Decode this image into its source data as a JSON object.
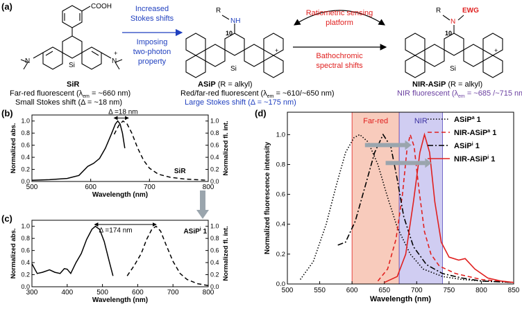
{
  "panels": {
    "a": "(a)",
    "b": "(b)",
    "c": "(c)",
    "d": "(d)"
  },
  "colors": {
    "blue": "#1f3fbf",
    "red": "#e0201f",
    "purple": "#6a3fa0",
    "farred_band": "#f5b9a6",
    "nir_band": "#c8c4f0",
    "arrow_gray": "#9aa5ad"
  },
  "scheme": {
    "sir": {
      "name": "SiR",
      "line1_pre": "Far-red fluorescent (λ",
      "line1_sub": "em",
      "line1_post": " = ~660 nm)",
      "line2": "Small Stokes shift (Δ = ~18 nm)",
      "cooh": "COOH",
      "nme2_left": "N",
      "nme2_right": "N",
      "si": "Si",
      "plus": "+"
    },
    "asip": {
      "name": "ASiP",
      "name_suffix": " (R = alkyl)",
      "line1_pre": "Red/far-red fluorescent (λ",
      "line1_sub": "em",
      "line1_post": " = ~610/~650 nm)",
      "line2": "Large Stokes shift (Δ = ~175 nm)",
      "r_nh": "R",
      "nh": "NH",
      "pos10": "10",
      "si": "Si",
      "plus": "+"
    },
    "nir_asip": {
      "name": "NIR-ASiP",
      "name_suffix": " (R = alkyl)",
      "line1_pre": "NIR fluorescent (λ",
      "line1_sub": "em",
      "line1_post": " = ~685 /~715 nm)",
      "r": "R",
      "n": "N",
      "ewg": "EWG",
      "pos10": "10",
      "si": "Si",
      "plus": "+"
    },
    "arrow1": {
      "top1": "Increased",
      "top2": "Stokes shifts",
      "bot1": "Imposing",
      "bot2": "two-photon",
      "bot3": "property"
    },
    "arrow2": {
      "top1": "Ratiometric sensing",
      "top2": "platform",
      "bot1": "Bathochromic",
      "bot2": "spectral shifts"
    }
  },
  "panel_b": {
    "delta": "Δ =18 nm",
    "xlabel": "Wavelength (nm)",
    "ylabel_left": "Normalized abs.",
    "ylabel_right": "Normalized fl. int.",
    "xticks": [
      "500",
      "600",
      "700",
      "800"
    ],
    "yticks": [
      "0.0",
      "0.2",
      "0.4",
      "0.6",
      "0.8",
      "1.0"
    ],
    "tag": "SiR",
    "xlim": [
      500,
      800
    ],
    "absorption": [
      [
        500,
        0.02
      ],
      [
        530,
        0.03
      ],
      [
        560,
        0.05
      ],
      [
        580,
        0.1
      ],
      [
        595,
        0.25
      ],
      [
        605,
        0.3
      ],
      [
        615,
        0.38
      ],
      [
        625,
        0.55
      ],
      [
        635,
        0.78
      ],
      [
        642,
        0.95
      ],
      [
        646,
        1.0
      ],
      [
        650,
        0.95
      ],
      [
        654,
        0.8
      ],
      [
        658,
        0.55
      ]
    ],
    "fluorescence": [
      [
        640,
        0.78
      ],
      [
        648,
        0.93
      ],
      [
        655,
        1.0
      ],
      [
        662,
        0.95
      ],
      [
        670,
        0.8
      ],
      [
        680,
        0.55
      ],
      [
        690,
        0.35
      ],
      [
        700,
        0.22
      ],
      [
        715,
        0.12
      ],
      [
        735,
        0.07
      ],
      [
        760,
        0.04
      ],
      [
        800,
        0.02
      ]
    ]
  },
  "panel_c": {
    "delta": "Δ =174 nm",
    "xlabel": "Wavelength (nm)",
    "ylabel_left": "Normalized abs.",
    "ylabel_right": "Normalized fl. int.",
    "xticks": [
      "300",
      "400",
      "500",
      "600",
      "700",
      "800"
    ],
    "yticks": [
      "0.0",
      "0.2",
      "0.4",
      "0.6",
      "0.8",
      "1.0"
    ],
    "tag": "ASiP",
    "tag_sup": "i",
    "tag_suffix": " 1",
    "xlim": [
      300,
      800
    ],
    "absorption": [
      [
        300,
        0.38
      ],
      [
        315,
        0.22
      ],
      [
        330,
        0.24
      ],
      [
        350,
        0.28
      ],
      [
        365,
        0.24
      ],
      [
        380,
        0.22
      ],
      [
        392,
        0.3
      ],
      [
        400,
        0.29
      ],
      [
        410,
        0.22
      ],
      [
        425,
        0.4
      ],
      [
        440,
        0.55
      ],
      [
        455,
        0.78
      ],
      [
        470,
        0.95
      ],
      [
        480,
        1.0
      ],
      [
        492,
        0.95
      ],
      [
        505,
        0.75
      ],
      [
        520,
        0.4
      ],
      [
        530,
        0.18
      ]
    ],
    "fluorescence": [
      [
        570,
        0.18
      ],
      [
        590,
        0.35
      ],
      [
        610,
        0.55
      ],
      [
        625,
        0.78
      ],
      [
        640,
        0.95
      ],
      [
        652,
        1.0
      ],
      [
        665,
        0.92
      ],
      [
        680,
        0.7
      ],
      [
        700,
        0.42
      ],
      [
        720,
        0.22
      ],
      [
        740,
        0.12
      ],
      [
        770,
        0.05
      ],
      [
        800,
        0.02
      ]
    ]
  },
  "panel_d": {
    "xlabel": "Wavelength (nm)",
    "ylabel": "Normalized fluorescence intensity",
    "xticks": [
      "500",
      "550",
      "600",
      "650",
      "700",
      "750",
      "800",
      "850"
    ],
    "yticks": [
      "0.0",
      "0.2",
      "0.4",
      "0.6",
      "0.8",
      "1.0"
    ],
    "xlim": [
      500,
      850
    ],
    "ylim": [
      0,
      1.15
    ],
    "band_farred": {
      "label": "Far-red",
      "from": 600,
      "to": 673
    },
    "band_nir": {
      "label": "NIR",
      "from": 673,
      "to": 740
    },
    "legend": [
      {
        "pre": "ASiP",
        "sup": "a",
        "post": " 1"
      },
      {
        "pre": "NIR-ASiP",
        "sup": "a",
        "post": " 1"
      },
      {
        "pre": "ASiP",
        "sup": "i",
        "post": " 1"
      },
      {
        "pre": "NIR-ASiP",
        "sup": "i",
        "post": " 1"
      }
    ],
    "series": [
      {
        "color": "#000000",
        "dash": "1.5,2.5",
        "points": [
          [
            520,
            0.03
          ],
          [
            540,
            0.15
          ],
          [
            560,
            0.4
          ],
          [
            575,
            0.65
          ],
          [
            590,
            0.88
          ],
          [
            603,
            0.98
          ],
          [
            612,
            1.0
          ],
          [
            625,
            0.95
          ],
          [
            640,
            0.8
          ],
          [
            655,
            0.58
          ],
          [
            670,
            0.38
          ],
          [
            690,
            0.2
          ],
          [
            710,
            0.1
          ],
          [
            740,
            0.05
          ],
          [
            770,
            0.03
          ],
          [
            800,
            0.02
          ],
          [
            850,
            0.01
          ]
        ]
      },
      {
        "color": "#e0201f",
        "dash": "6,4",
        "points": [
          [
            640,
            0.02
          ],
          [
            655,
            0.1
          ],
          [
            668,
            0.3
          ],
          [
            678,
            0.6
          ],
          [
            685,
            0.9
          ],
          [
            690,
            1.0
          ],
          [
            696,
            0.92
          ],
          [
            703,
            0.65
          ],
          [
            712,
            0.35
          ],
          [
            722,
            0.2
          ],
          [
            735,
            0.12
          ],
          [
            760,
            0.07
          ],
          [
            800,
            0.03
          ],
          [
            850,
            0.01
          ]
        ]
      },
      {
        "color": "#000000",
        "dash": "8,3,2,3",
        "points": [
          [
            578,
            0.26
          ],
          [
            590,
            0.28
          ],
          [
            605,
            0.42
          ],
          [
            620,
            0.65
          ],
          [
            635,
            0.88
          ],
          [
            648,
            1.0
          ],
          [
            660,
            0.92
          ],
          [
            670,
            0.7
          ],
          [
            680,
            0.45
          ],
          [
            695,
            0.25
          ],
          [
            715,
            0.13
          ],
          [
            740,
            0.07
          ],
          [
            770,
            0.04
          ],
          [
            800,
            0.02
          ],
          [
            850,
            0.01
          ]
        ]
      },
      {
        "color": "#e0201f",
        "dash": "",
        "points": [
          [
            650,
            0.01
          ],
          [
            670,
            0.05
          ],
          [
            683,
            0.2
          ],
          [
            695,
            0.55
          ],
          [
            705,
            0.88
          ],
          [
            712,
            1.0
          ],
          [
            720,
            0.88
          ],
          [
            728,
            0.55
          ],
          [
            738,
            0.28
          ],
          [
            750,
            0.18
          ],
          [
            765,
            0.16
          ],
          [
            775,
            0.17
          ],
          [
            790,
            0.1
          ],
          [
            810,
            0.04
          ],
          [
            830,
            0.02
          ],
          [
            850,
            0.01
          ]
        ]
      }
    ]
  }
}
